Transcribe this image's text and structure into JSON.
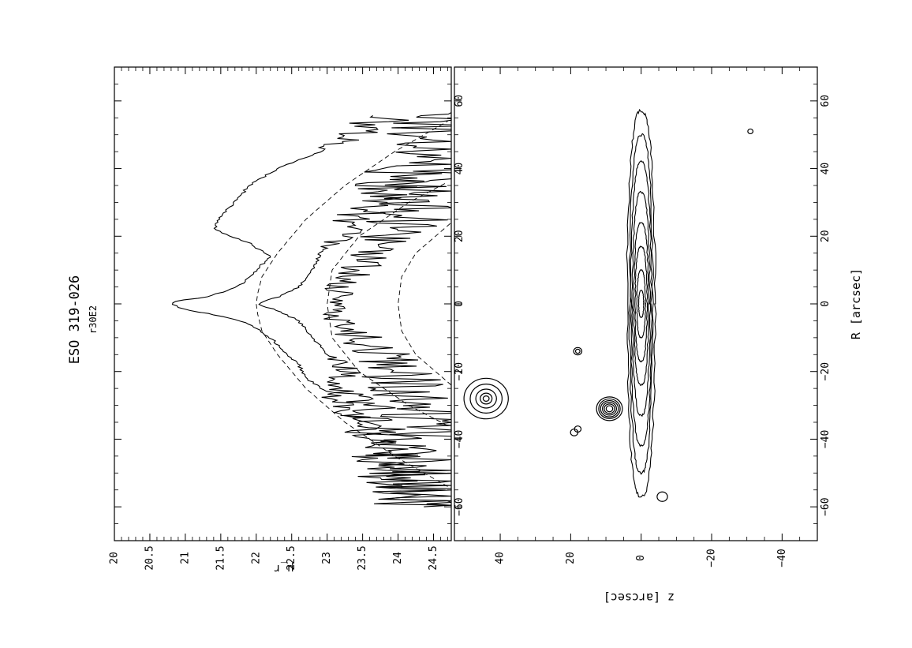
{
  "header": {
    "title": "ESO 319-026",
    "subtitle": "r30E2"
  },
  "chart_data": [
    {
      "type": "line",
      "name": "surface-brightness-profiles",
      "xlabel": "",
      "ylabel": "μ_r",
      "xlim": [
        -70,
        70
      ],
      "ylim": [
        24.75,
        20
      ],
      "x_ticks": [
        -60,
        -40,
        -20,
        0,
        20,
        40,
        60
      ],
      "x_tick_labels": [
        "−60",
        "−40",
        "−20",
        "0",
        "20",
        "40",
        "60"
      ],
      "y_ticks": [
        20,
        20.5,
        21,
        21.5,
        22,
        22.5,
        23,
        23.5,
        24,
        24.5
      ],
      "y_tick_labels": [
        "20",
        "20.5",
        "21",
        "21.5",
        "22",
        "22.5",
        "23",
        "23.5",
        "24",
        "24.5"
      ],
      "series": [
        {
          "style": "solid",
          "x": [
            -60,
            -52,
            -45,
            -40,
            -35,
            -30,
            -26,
            -22,
            -18,
            -14,
            -10,
            -6,
            -4,
            -2,
            -1,
            0,
            1,
            2,
            4,
            6,
            10,
            14,
            18,
            22,
            26,
            30,
            35,
            40,
            45,
            50,
            56
          ],
          "y": [
            24.3,
            24.0,
            23.8,
            23.7,
            23.4,
            23.2,
            23.0,
            22.7,
            22.6,
            22.4,
            22.2,
            21.9,
            21.6,
            21.1,
            20.9,
            20.8,
            20.9,
            21.3,
            21.6,
            21.8,
            22.0,
            22.2,
            21.9,
            21.4,
            21.5,
            21.7,
            21.9,
            22.3,
            22.9,
            23.4,
            23.9
          ]
        },
        {
          "style": "dashed",
          "x": [
            -54,
            -45,
            -35,
            -25,
            -15,
            -8,
            -3,
            0,
            3,
            8,
            15,
            25,
            35,
            45,
            54
          ],
          "y": [
            24.7,
            23.95,
            23.25,
            22.7,
            22.3,
            22.08,
            22.02,
            22.0,
            22.02,
            22.08,
            22.3,
            22.7,
            23.25,
            23.95,
            24.7
          ]
        },
        {
          "style": "solid",
          "x": [
            -60,
            -50,
            -45,
            -40,
            -35,
            -30,
            -25,
            -20,
            -15,
            -10,
            -5,
            -2,
            0,
            2,
            5,
            10,
            15,
            20,
            25,
            30,
            35,
            40,
            45,
            50,
            57
          ],
          "y": [
            24.6,
            24.4,
            24.2,
            23.9,
            23.6,
            23.6,
            23.2,
            23.3,
            23.0,
            22.8,
            22.6,
            22.3,
            22.0,
            22.3,
            22.6,
            22.8,
            22.9,
            23.2,
            23.4,
            23.6,
            23.9,
            24.2,
            24.4,
            24.6,
            24.7
          ]
        },
        {
          "style": "dashed",
          "x": [
            -36,
            -30,
            -20,
            -10,
            0,
            10,
            20,
            30,
            36
          ],
          "y": [
            24.7,
            24.15,
            23.45,
            23.07,
            23.0,
            23.07,
            23.45,
            24.15,
            24.7
          ]
        },
        {
          "style": "solid",
          "x": [
            -40,
            -30,
            -20,
            -10,
            -5,
            0,
            5,
            10,
            20,
            30,
            40
          ],
          "y": [
            24.7,
            24.4,
            24.0,
            23.5,
            23.15,
            23.1,
            23.2,
            23.4,
            23.9,
            24.3,
            24.7
          ]
        },
        {
          "style": "dashed",
          "x": [
            -24,
            -15,
            -8,
            0,
            8,
            15,
            24
          ],
          "y": [
            24.75,
            24.25,
            24.05,
            24.0,
            24.05,
            24.25,
            24.75
          ]
        }
      ]
    },
    {
      "type": "contour",
      "name": "isophote-map",
      "xlabel": "R [arcsec]",
      "ylabel": "z [arcsec]",
      "xlim": [
        70,
        -70
      ],
      "ylim": [
        -50,
        53
      ],
      "x_ticks": [
        60,
        40,
        20,
        0,
        -20,
        -40,
        -60
      ],
      "x_tick_labels": [
        "60",
        "40",
        "20",
        "0",
        "−20",
        "−40",
        "−60"
      ],
      "y_ticks": [
        40,
        20,
        0,
        -20,
        -40
      ],
      "y_tick_labels": [
        "40",
        "20",
        "0",
        "−20",
        "−40"
      ],
      "disk": {
        "center": [
          0,
          0
        ],
        "contours": [
          [
            57,
            4
          ],
          [
            50,
            3.3
          ],
          [
            42,
            2.9
          ],
          [
            33,
            2.5
          ],
          [
            24,
            2.1
          ],
          [
            17,
            1.7
          ],
          [
            10,
            1.2
          ],
          [
            4,
            0.7
          ]
        ]
      },
      "sources": [
        {
          "x": -28,
          "z": 44,
          "radii": [
            6,
            4.3,
            2.8,
            1.6,
            0.8
          ]
        },
        {
          "x": -31,
          "z": 9,
          "radii": [
            3.5,
            2.9,
            2.4,
            1.9,
            1.4,
            0.9
          ]
        },
        {
          "x": -14,
          "z": 18,
          "radii": [
            1.1,
            0.6
          ]
        },
        {
          "x": -38,
          "z": 19,
          "radii": [
            1.0
          ]
        },
        {
          "x": -37,
          "z": 18,
          "radii": [
            0.9
          ]
        },
        {
          "x": -57,
          "z": -6,
          "radii": [
            1.4
          ]
        },
        {
          "x": 51,
          "z": -31,
          "radii": [
            0.7
          ]
        }
      ]
    }
  ]
}
